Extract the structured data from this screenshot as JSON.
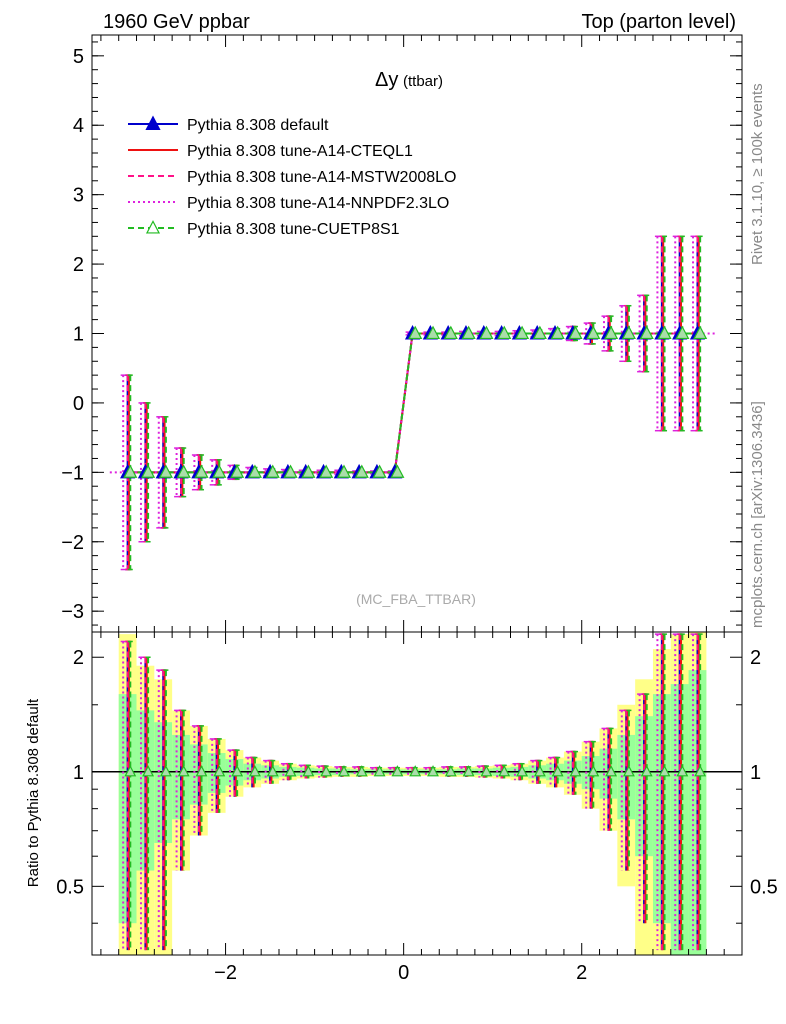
{
  "header": {
    "left": "1960 GeV ppbar",
    "right": "Top (parton level)"
  },
  "side_labels": {
    "rivet": "Rivet 3.1.10, ≥ 100k events",
    "mcplots": "mcplots.cern.ch [arXiv:1306.3436]"
  },
  "chart_data": [
    {
      "type": "line",
      "panel": "main",
      "title": "Δy",
      "title_suffix": "(ttbar)",
      "watermark": "(MC_FBA_TTBAR)",
      "xlabel": "",
      "ylabel": "",
      "xlim": [
        -3.5,
        3.8
      ],
      "ylim": [
        -3.3,
        5.3
      ],
      "y_ticks": [
        "−3",
        "−2",
        "−1",
        "0",
        "1",
        "2",
        "3",
        "4",
        "5"
      ],
      "y_tick_values": [
        -3,
        -2,
        -1,
        0,
        1,
        2,
        3,
        4,
        5
      ],
      "x_ticks": [
        "−2",
        "0",
        "2"
      ],
      "x_tick_values": [
        -2,
        0,
        2
      ],
      "legend_position": "top-left",
      "x": [
        -3.1,
        -2.9,
        -2.7,
        -2.5,
        -2.3,
        -2.1,
        -1.9,
        -1.7,
        -1.5,
        -1.3,
        -1.1,
        -0.9,
        -0.7,
        -0.5,
        -0.3,
        -0.1,
        0.1,
        0.3,
        0.5,
        0.7,
        0.9,
        1.1,
        1.3,
        1.5,
        1.7,
        1.9,
        2.1,
        2.3,
        2.5,
        2.7,
        2.9,
        3.1,
        3.3
      ],
      "values": [
        -1,
        -1,
        -1,
        -1,
        -1,
        -1,
        -1,
        -1,
        -1,
        -1,
        -1,
        -1,
        -1,
        -1,
        -1,
        -1,
        1,
        1,
        1,
        1,
        1,
        1,
        1,
        1,
        1,
        1,
        1,
        1,
        1,
        1,
        1,
        1,
        1
      ],
      "errors": [
        1.4,
        1.0,
        0.8,
        0.35,
        0.25,
        0.18,
        0.1,
        0.07,
        0.05,
        0.04,
        0.03,
        0.03,
        0.03,
        0.02,
        0.02,
        0.02,
        0.02,
        0.02,
        0.02,
        0.03,
        0.03,
        0.03,
        0.04,
        0.05,
        0.07,
        0.1,
        0.15,
        0.25,
        0.4,
        0.55,
        1.4,
        1.4,
        1.4
      ],
      "series": [
        {
          "name": "Pythia 8.308 default",
          "color": "#0000cc",
          "style": "solid",
          "marker": "triangle-filled"
        },
        {
          "name": "Pythia 8.308 tune-A14-CTEQL1",
          "color": "#ee1111",
          "style": "solid",
          "marker": "none"
        },
        {
          "name": "Pythia 8.308 tune-A14-MSTW2008LO",
          "color": "#ff1188",
          "style": "dashed",
          "marker": "none"
        },
        {
          "name": "Pythia 8.308 tune-A14-NNPDF2.3LO",
          "color": "#dd22dd",
          "style": "dotted",
          "marker": "none"
        },
        {
          "name": "Pythia 8.308 tune-CUETP8S1",
          "color": "#22bb22",
          "style": "dashed",
          "marker": "triangle-open"
        }
      ]
    },
    {
      "type": "line",
      "panel": "ratio",
      "ylabel": "Ratio to Pythia 8.308 default",
      "ylim": [
        0.33,
        2.33
      ],
      "y_scale": "log",
      "y_ticks": [
        "0.5",
        "1",
        "2"
      ],
      "y_tick_values": [
        0.5,
        1,
        2
      ],
      "reference": 1,
      "x": [
        -3.1,
        -2.9,
        -2.7,
        -2.5,
        -2.3,
        -2.1,
        -1.9,
        -1.7,
        -1.5,
        -1.3,
        -1.1,
        -0.9,
        -0.7,
        -0.5,
        -0.3,
        -0.1,
        0.1,
        0.3,
        0.5,
        0.7,
        0.9,
        1.1,
        1.3,
        1.5,
        1.7,
        1.9,
        2.1,
        2.3,
        2.5,
        2.7,
        2.9,
        3.1,
        3.3
      ],
      "green_band_half": [
        0.6,
        0.45,
        0.35,
        0.25,
        0.18,
        0.12,
        0.08,
        0.05,
        0.04,
        0.03,
        0.025,
        0.02,
        0.02,
        0.015,
        0.015,
        0.015,
        0.015,
        0.015,
        0.015,
        0.02,
        0.02,
        0.025,
        0.03,
        0.04,
        0.05,
        0.07,
        0.1,
        0.15,
        0.25,
        0.4,
        0.6,
        0.7,
        0.85
      ],
      "yellow_band_half": [
        1.3,
        0.9,
        0.75,
        0.45,
        0.32,
        0.22,
        0.14,
        0.09,
        0.07,
        0.05,
        0.04,
        0.035,
        0.03,
        0.03,
        0.025,
        0.025,
        0.025,
        0.025,
        0.03,
        0.03,
        0.035,
        0.04,
        0.05,
        0.07,
        0.09,
        0.13,
        0.2,
        0.3,
        0.5,
        0.75,
        1.1,
        1.3,
        1.4
      ],
      "ratio_errors": [
        1.2,
        1.0,
        0.85,
        0.45,
        0.32,
        0.22,
        0.14,
        0.09,
        0.07,
        0.05,
        0.04,
        0.035,
        0.03,
        0.03,
        0.025,
        0.025,
        0.025,
        0.025,
        0.03,
        0.03,
        0.035,
        0.04,
        0.05,
        0.07,
        0.09,
        0.13,
        0.2,
        0.3,
        0.45,
        0.6,
        1.3,
        1.3,
        1.3
      ]
    }
  ]
}
